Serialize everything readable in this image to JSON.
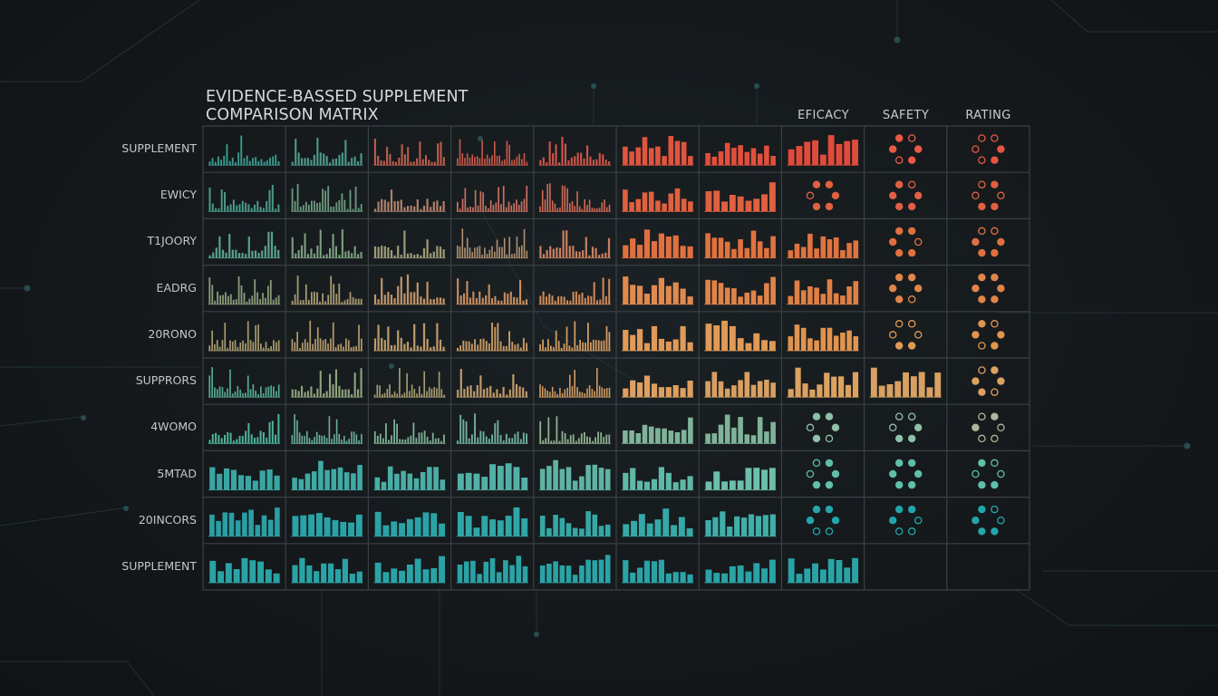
{
  "title_line1": "EVIDENCE-BASSED SUPPLEMENT",
  "title_line2": "COMPARISON MATRIX",
  "column_headers": [
    "EFICACY",
    "SAFETY",
    "RATING"
  ],
  "row_labels": [
    "SUPPLEMENT",
    "EWICY",
    "T1JOORY",
    "EADRG",
    "20RONO",
    "SUPPRORS",
    "4WOMO",
    "5MTAD",
    "20INCORS",
    "SUPPLEMENT"
  ],
  "chart_data": {
    "type": "heatmap",
    "description_note": "",
    "rows": 10,
    "columns": 10,
    "row_labels": [
      "SUPPLEMENT",
      "EWICY",
      "T1JOORY",
      "EADRG",
      "20RONO",
      "SUPPRORS",
      "4WOMO",
      "5MTAD",
      "20INCORS",
      "SUPPLEMENT"
    ],
    "column_headers": [
      "EFICACY",
      "SAFETY",
      "RATING"
    ],
    "row_colors": [
      "#3a9a8c",
      "#5a9b87",
      "#7ca27e",
      "#a89a6e",
      "#bf9a6a",
      "#cf9a62",
      "#7fb39a",
      "#4fb3a3",
      "#2aa3a6",
      "#2aa3a6"
    ],
    "cells": [
      [
        "bars",
        "bars",
        "bars",
        "bars",
        "bars",
        "bars",
        "bars",
        "bars",
        "dots",
        "dots"
      ],
      [
        "bars",
        "bars",
        "bars",
        "bars",
        "bars",
        "bars",
        "bars",
        "dots",
        "dots",
        "dots"
      ],
      [
        "bars",
        "bars",
        "bars",
        "bars",
        "bars",
        "bars",
        "bars",
        "bars",
        "dots",
        "dots"
      ],
      [
        "bars",
        "bars",
        "bars",
        "bars",
        "bars",
        "bars",
        "bars",
        "bars",
        "dots",
        "dots"
      ],
      [
        "bars",
        "bars",
        "bars",
        "bars",
        "bars",
        "bars",
        "bars",
        "bars",
        "dots",
        "dots"
      ],
      [
        "bars",
        "bars",
        "bars",
        "bars",
        "bars",
        "bars",
        "bars",
        "bars",
        "bars",
        "dots"
      ],
      [
        "bars",
        "bars",
        "bars",
        "bars",
        "bars",
        "bars",
        "bars",
        "dots",
        "dots",
        "dots"
      ],
      [
        "bars",
        "bars",
        "bars",
        "bars",
        "bars",
        "bars",
        "bars",
        "dots",
        "dots",
        "dots"
      ],
      [
        "bars",
        "bars",
        "bars",
        "bars",
        "bars",
        "bars",
        "bars",
        "dots",
        "dots",
        "dots"
      ],
      [
        "bars",
        "bars",
        "bars",
        "bars",
        "bars",
        "bars",
        "bars",
        "bars",
        "empty",
        "empty"
      ]
    ],
    "cell_colors": [
      [
        "#3a9a8c",
        "#4f9a8a",
        "#c0604e",
        "#c9584a",
        "#d0554a",
        "#e0553f",
        "#e0503d",
        "#e04b3b",
        "#e85a42",
        "#e8553f"
      ],
      [
        "#4b9a88",
        "#6b9a80",
        "#b0806a",
        "#c5705f",
        "#d06a55",
        "#e0603f",
        "#e0603f",
        "#e06040",
        "#e06045",
        "#e06040"
      ],
      [
        "#5aa08a",
        "#7c9f80",
        "#9f9a78",
        "#b09070",
        "#c98060",
        "#e0703f",
        "#e0733f",
        "#e0743f",
        "#e0703f",
        "#e07040"
      ],
      [
        "#8a9a78",
        "#a89a70",
        "#c09468",
        "#c98e60",
        "#d28a58",
        "#e08a50",
        "#e0844a",
        "#e08045",
        "#e0864a",
        "#e0844a"
      ],
      [
        "#a89a6e",
        "#b59a6b",
        "#bf9a6a",
        "#c89a66",
        "#d09a62",
        "#e09a5a",
        "#e09a55",
        "#e0944f",
        "#e09a55",
        "#e0964f"
      ],
      [
        "#55a890",
        "#8fa47c",
        "#a89f72",
        "#bf9a6a",
        "#cf9a62",
        "#dea060",
        "#d8a062",
        "#dca260",
        "#d8a062",
        "#dca060"
      ],
      [
        "#4fb39a",
        "#6ab096",
        "#7cb095",
        "#6fb09a",
        "#8fb090",
        "#7fb39a",
        "#7fb39a",
        "#8fc0a8",
        "#8fc0a8",
        "#a9b89a"
      ],
      [
        "#3aa6a4",
        "#40aaa5",
        "#4aaea6",
        "#52b0a6",
        "#5fb3a3",
        "#5fb8a6",
        "#6cc0ab",
        "#5fbfa8",
        "#5fbfa8",
        "#5fbfa8"
      ],
      [
        "#2a9fa4",
        "#2aa3a6",
        "#2aa3a6",
        "#30a6a6",
        "#35a8a6",
        "#35a9a8",
        "#40aeaa",
        "#22a6aa",
        "#22a6aa",
        "#22a6aa"
      ],
      [
        "#2aa3a6",
        "#2aa3a6",
        "#2aa3a6",
        "#2aa3a6",
        "#2aa3a6",
        "#2aa3a6",
        "#2aa3a6",
        "#2aa3a6",
        "",
        ""
      ]
    ]
  },
  "colors": {
    "background": "#15191c",
    "grid": "#3a4044",
    "title": "#d7dadb"
  }
}
